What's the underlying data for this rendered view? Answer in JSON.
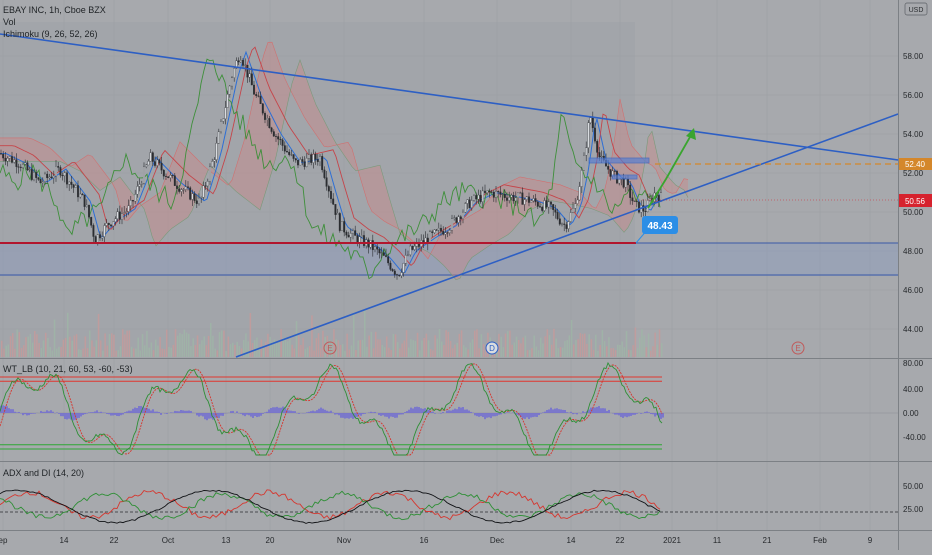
{
  "header": {
    "title": "EBAY INC, 1h, Cboe BZX",
    "vol_label": "Vol",
    "ichimoku_label": "Ichimoku (9, 26, 52, 26)",
    "currency": "USD"
  },
  "price_axis": {
    "ticks": [
      "58.00",
      "56.00",
      "54.00",
      "52.00",
      "50.00",
      "48.00",
      "46.00",
      "44.00"
    ],
    "current_price": "50.56",
    "target_price": "52.40",
    "support_label": "48.43"
  },
  "wt_panel": {
    "label": "WT_LB (10, 21, 60, 53, -60, -53)",
    "ticks": [
      "80.00",
      "40.00",
      "0.00",
      "-40.00"
    ]
  },
  "adx_panel": {
    "label": "ADX and DI (14, 20)",
    "ticks": [
      "50.00",
      "25.00"
    ]
  },
  "time_axis": {
    "labels": [
      "ep",
      "14",
      "22",
      "Oct",
      "13",
      "20",
      "Nov",
      "16",
      "Dec",
      "14",
      "22",
      "2021",
      "11",
      "21",
      "Feb",
      "9"
    ]
  },
  "event_markers": [
    "E",
    "D",
    "E"
  ],
  "colors": {
    "background": "#a7a9ad",
    "trendline": "#2d5fc4",
    "support": "#b2162e",
    "target": "#d4872b",
    "badge_current": "#d6222e",
    "badge_label": "#2c8ee6",
    "arrow": "#3aa52f",
    "wt_bands": "#e0362e",
    "wt_lower": "#2ea835",
    "histogram": "#6c68d6"
  },
  "chart_data": {
    "type": "line",
    "symbol": "EBAY",
    "price_ylim": [
      42.7,
      59.7
    ],
    "key_levels": {
      "current": 50.56,
      "target": 52.4,
      "support": 48.43,
      "lower_band": 46.8
    },
    "wt_ylim": [
      -70,
      95
    ],
    "wt_levels": [
      60,
      53,
      -53,
      -60
    ],
    "adx_ylim": [
      0,
      70
    ],
    "adx_level": 20
  }
}
